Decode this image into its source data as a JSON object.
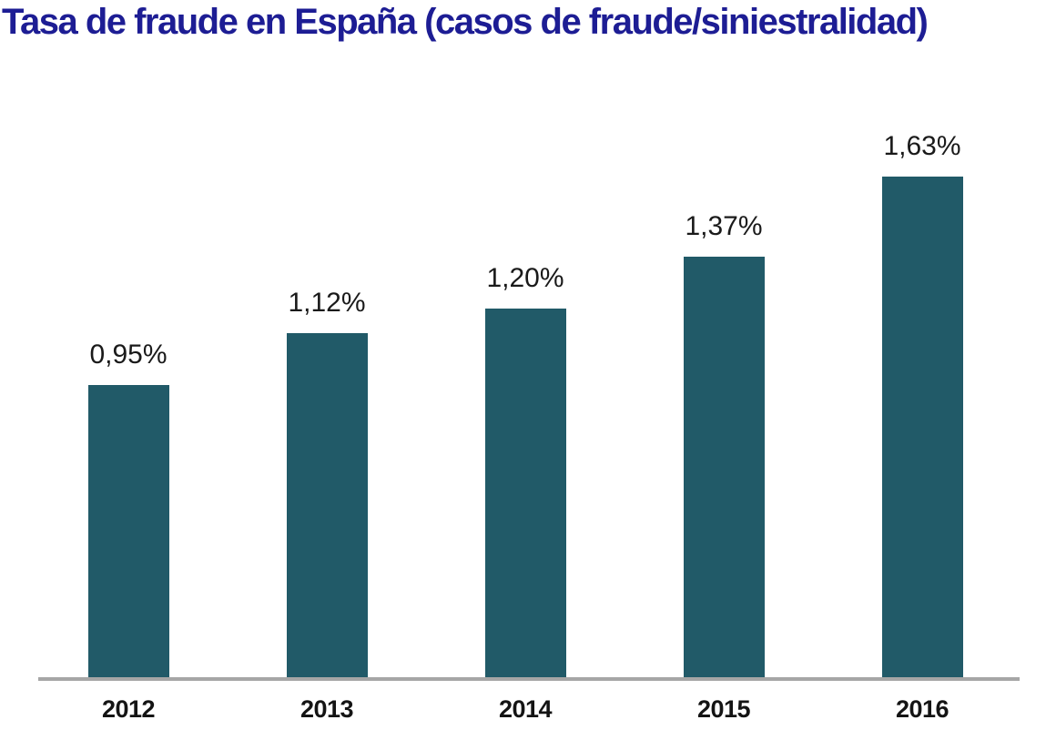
{
  "header": {
    "title": "Tasa de fraude en España (casos de fraude/siniestralidad)",
    "title_color": "#1d1d94"
  },
  "chart_data": {
    "type": "bar",
    "title": "Tasa de fraude en España (casos de fraude/siniestralidad)",
    "categories": [
      "2012",
      "2013",
      "2014",
      "2015",
      "2016"
    ],
    "values": [
      0.95,
      1.12,
      1.2,
      1.37,
      1.63
    ],
    "value_labels": [
      "0,95%",
      "1,12%",
      "1,20%",
      "1,37%",
      "1,63%"
    ],
    "xlabel": "",
    "ylabel": "",
    "ylim": [
      0,
      1.9
    ],
    "grid": false,
    "legend_position": "none",
    "bar_color": "#215a68",
    "axis_line_color": "#a6a6a6",
    "value_label_color": "#1a1a1a",
    "tick_label_color": "#141414"
  }
}
